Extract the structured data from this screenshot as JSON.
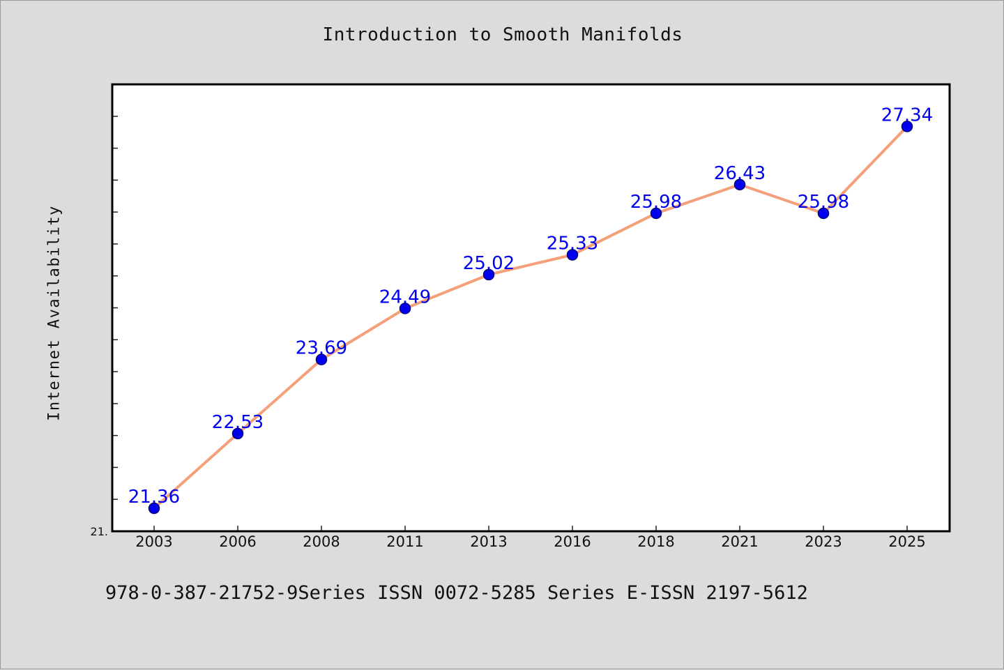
{
  "chart_data": {
    "type": "line",
    "title": "Introduction to Smooth Manifolds",
    "xlabel": "",
    "ylabel": "Internet Availability",
    "categories": [
      "2003",
      "2006",
      "2008",
      "2011",
      "2013",
      "2016",
      "2018",
      "2021",
      "2023",
      "2025"
    ],
    "series": [
      {
        "values": [
          21.36,
          22.53,
          23.69,
          24.49,
          25.02,
          25.33,
          25.98,
          26.43,
          25.98,
          27.34
        ]
      }
    ],
    "data_labels": [
      "21.36",
      "22.53",
      "23.69",
      "24.49",
      "25.02",
      "25.33",
      "25.98",
      "26.43",
      "25.98",
      "27.34"
    ],
    "ylim": [
      21.0,
      28.0
    ],
    "y_tick_label": "21.",
    "grid": false,
    "legend": "none",
    "colors": {
      "line": "#f4a07a",
      "marker": "#0000ee",
      "marker_edge": "#00007a",
      "label": "#0000ee",
      "plot_bg": "#ffffff",
      "page_bg": "#dcdcdc"
    }
  },
  "footer": {
    "text": "978-0-387-21752-9Series ISSN 0072-5285 Series E-ISSN 2197-5612"
  }
}
